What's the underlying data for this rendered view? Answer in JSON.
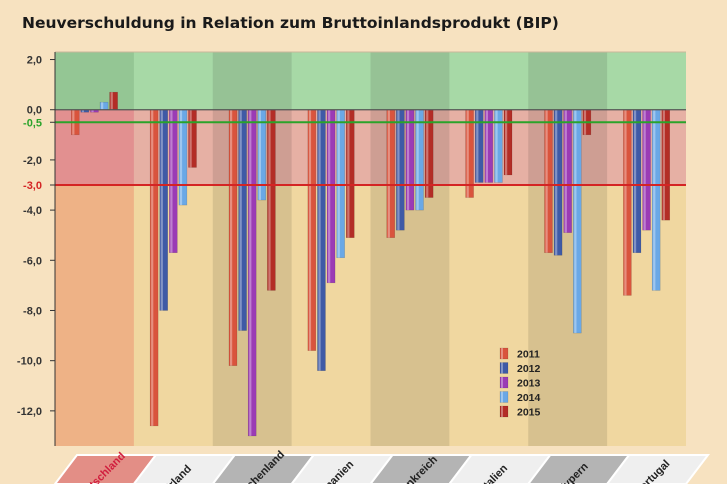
{
  "chart_data": {
    "type": "bar",
    "title": "Neuverschuldung in Relation zum Bruttoinlandsprodukt (BIP)",
    "categories": [
      "Deutschland",
      "Irland",
      "Griechenland",
      "Spanien",
      "Frankreich",
      "Italien",
      "Zypern",
      "Portugal"
    ],
    "series": [
      {
        "name": "2011",
        "color": "#d9543d",
        "values": [
          -1.0,
          -12.6,
          -10.2,
          -9.6,
          -5.1,
          -3.5,
          -5.7,
          -7.4
        ]
      },
      {
        "name": "2012",
        "color": "#3f5aa6",
        "values": [
          -0.1,
          -8.0,
          -8.8,
          -10.4,
          -4.8,
          -2.9,
          -5.8,
          -5.7
        ]
      },
      {
        "name": "2013",
        "color": "#9b3bb5",
        "values": [
          -0.1,
          -5.7,
          -13.0,
          -6.9,
          -4.0,
          -2.9,
          -4.9,
          -4.8
        ]
      },
      {
        "name": "2014",
        "color": "#6aa8e6",
        "values": [
          0.3,
          -3.8,
          -3.6,
          -5.9,
          -4.0,
          -2.9,
          -8.9,
          -7.2
        ]
      },
      {
        "name": "2015",
        "color": "#b32d26",
        "values": [
          0.7,
          -2.3,
          -7.2,
          -5.1,
          -3.5,
          -2.6,
          -1.0,
          -4.4
        ]
      }
    ],
    "yticks": [
      "2,0",
      "0,0",
      "-0,5",
      "-2,0",
      "-3,0",
      "-4,0",
      "-6,0",
      "-8,0",
      "-10,0",
      "-12,0"
    ],
    "ytick_values": [
      2,
      0,
      -0.5,
      -2,
      -3,
      -4,
      -6,
      -8,
      -10,
      -12
    ],
    "reference_lines": [
      {
        "value": -0.5,
        "label": "-0,5",
        "color": "#2aa32a"
      },
      {
        "value": -3.0,
        "label": "-3,0",
        "color": "#d42424"
      }
    ],
    "ylim": [
      -13.4,
      2.3
    ],
    "legend_position": "bottom-right",
    "grid": false
  }
}
